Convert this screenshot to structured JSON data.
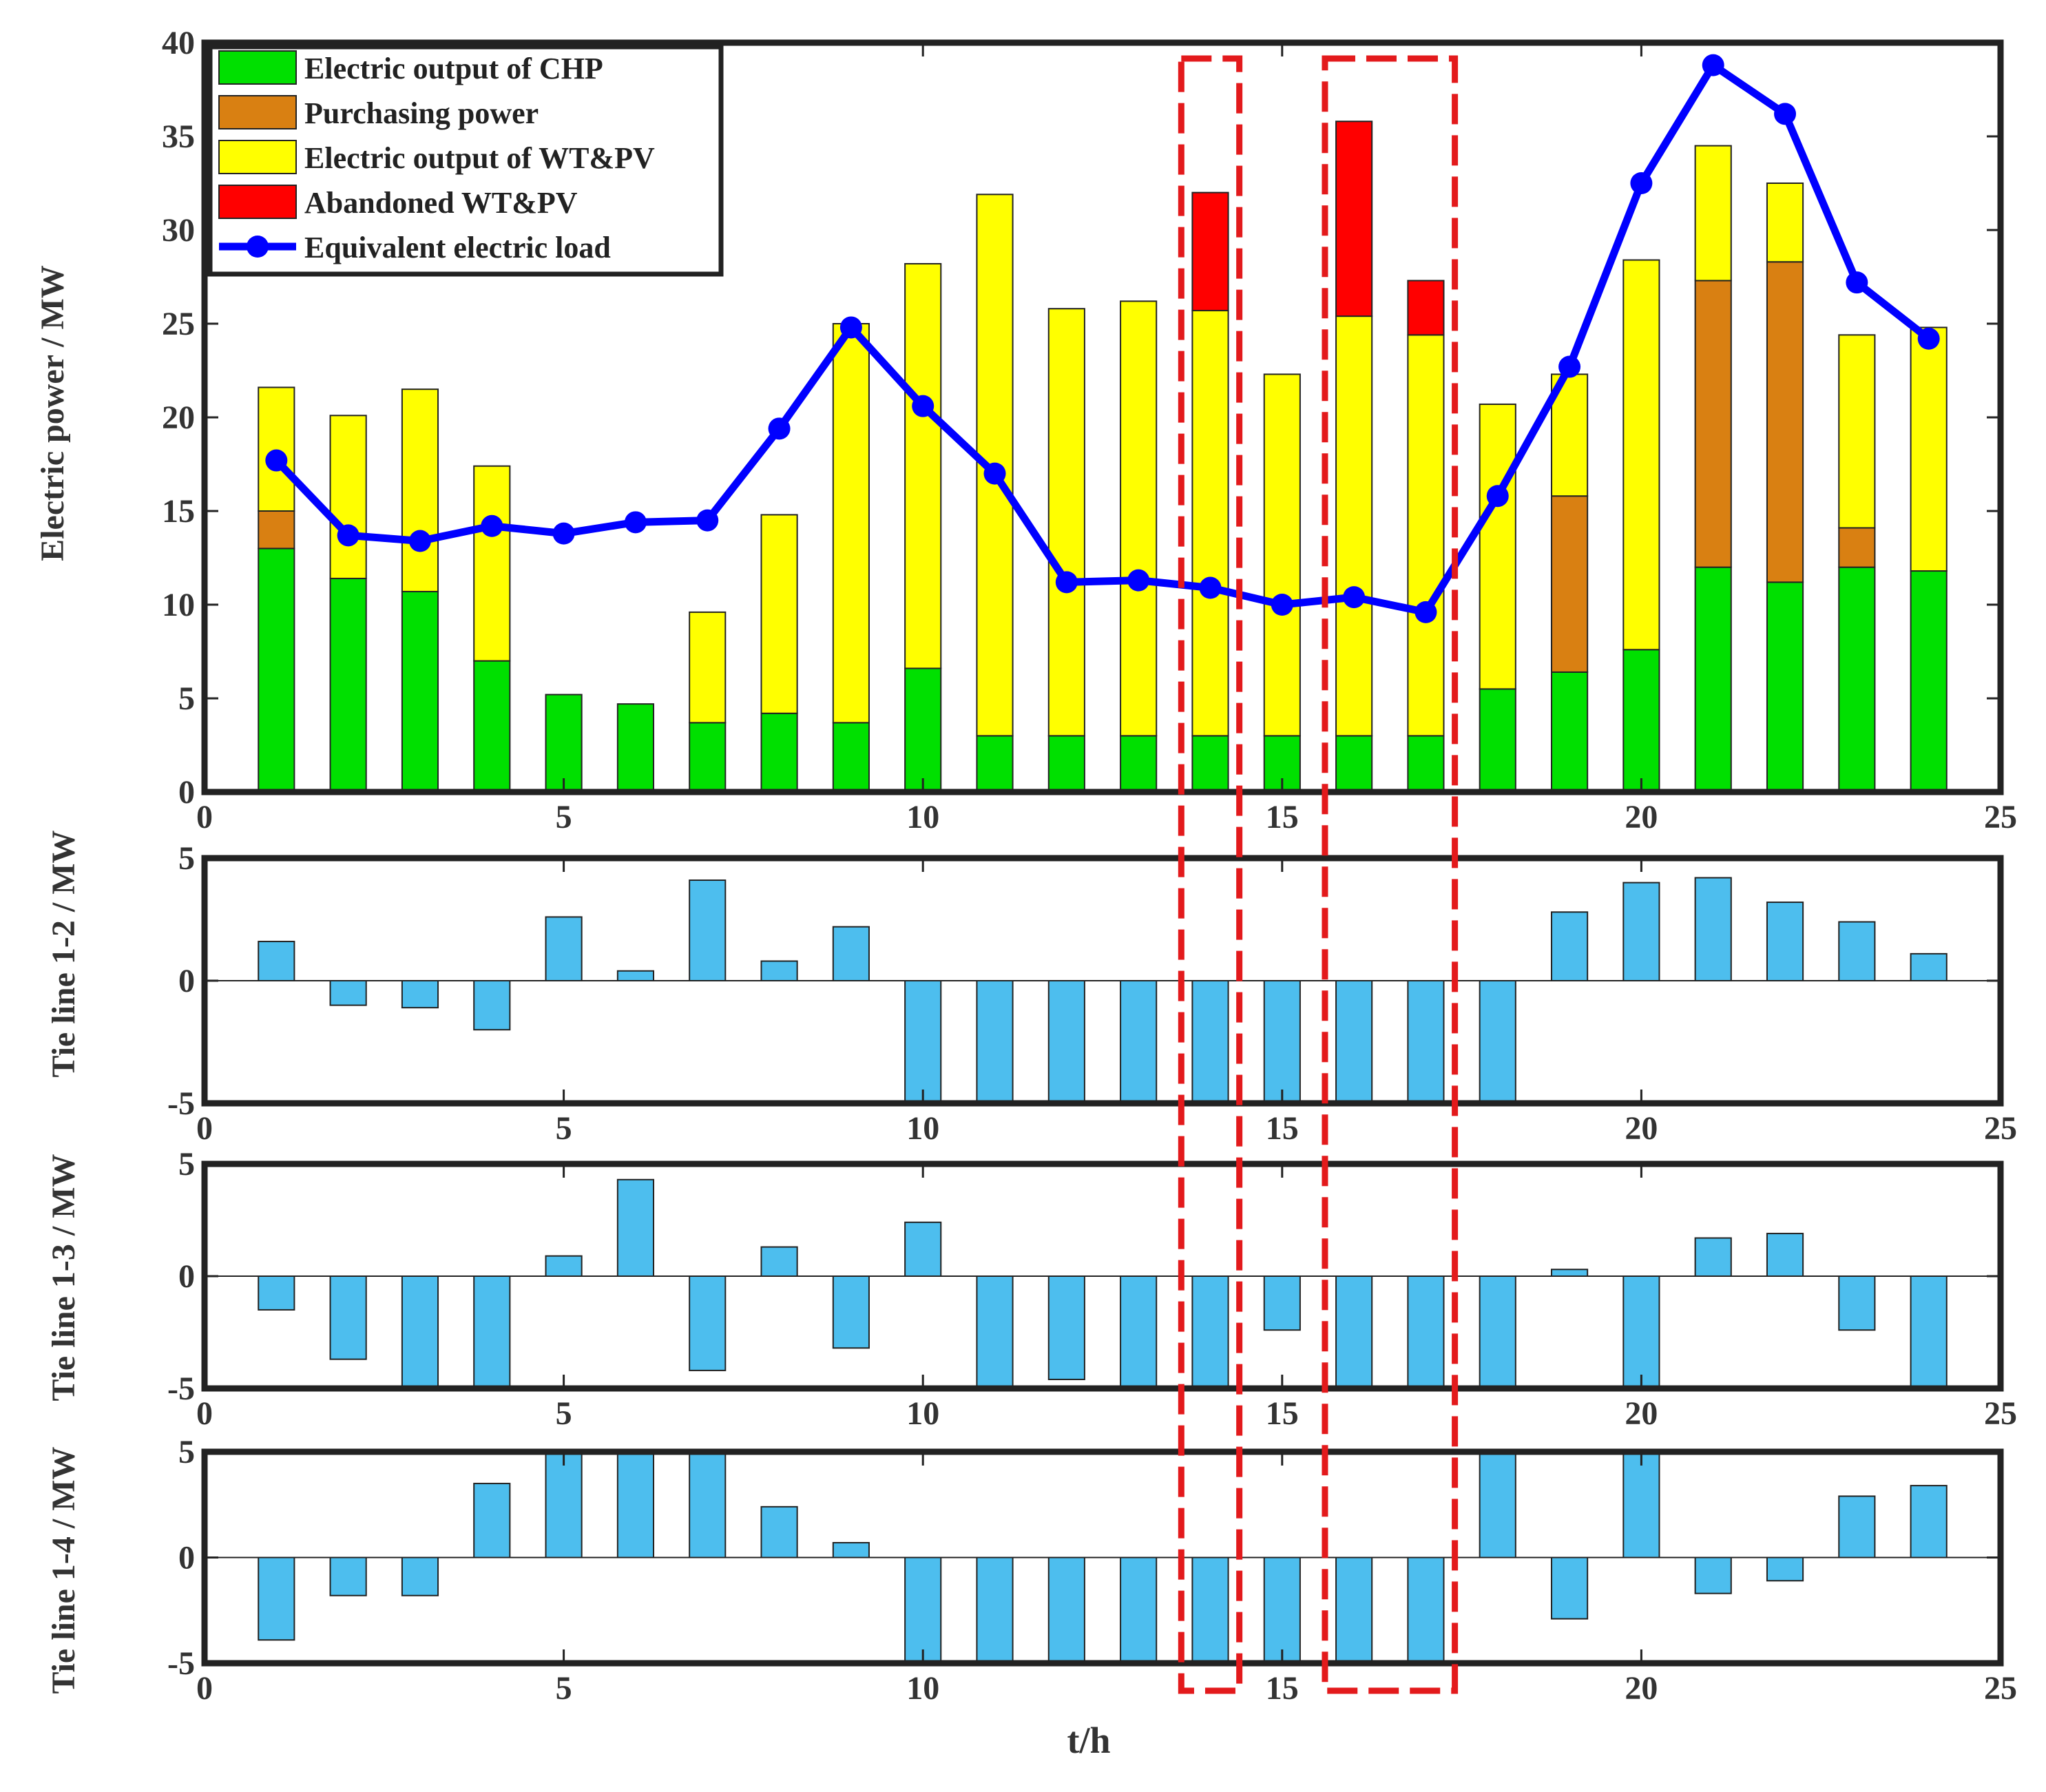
{
  "chart_data": [
    {
      "type": "bar",
      "stacked": true,
      "x": [
        1,
        2,
        3,
        4,
        5,
        6,
        7,
        8,
        9,
        10,
        11,
        12,
        13,
        14,
        15,
        16,
        17,
        18,
        19,
        20,
        21,
        22,
        23,
        24
      ],
      "xlim": [
        0,
        25
      ],
      "xticks": [
        0,
        5,
        10,
        15,
        20,
        25
      ],
      "ylim": [
        0,
        40
      ],
      "yticks": [
        0,
        5,
        10,
        15,
        20,
        25,
        30,
        35,
        40
      ],
      "ylabel": "Electric power / MW",
      "xlabel": "",
      "series": [
        {
          "name": "Electric output of CHP",
          "color": "#00e000",
          "values": [
            13,
            11.4,
            10.7,
            7,
            5.2,
            4.7,
            3.7,
            4.2,
            3.7,
            6.6,
            3,
            3,
            3,
            3,
            3,
            3,
            3,
            5.5,
            6.4,
            7.6,
            12,
            11.2,
            12,
            11.8
          ]
        },
        {
          "name": "Purchasing power",
          "color": "#d98012",
          "values": [
            2,
            0,
            0,
            0,
            0,
            0,
            0,
            0,
            0,
            0,
            0,
            0,
            0,
            0,
            0,
            0,
            0,
            0,
            9.4,
            0,
            15.3,
            17.1,
            2.1,
            0
          ]
        },
        {
          "name": "Electric output of WT&PV",
          "color": "#ffff00",
          "values": [
            6.6,
            8.7,
            10.8,
            10.4,
            0,
            0,
            5.9,
            10.6,
            21.3,
            21.6,
            28.9,
            22.8,
            23.2,
            22.7,
            19.3,
            22.4,
            21.4,
            15.2,
            6.5,
            20.8,
            7.2,
            4.2,
            10.3,
            13
          ]
        },
        {
          "name": "Abandoned WT&PV",
          "color": "#ff0000",
          "values": [
            0,
            0,
            0,
            0,
            0,
            0,
            0,
            0,
            0,
            0,
            0,
            0,
            0,
            6.3,
            0,
            10.4,
            2.9,
            0,
            0,
            0,
            0,
            0,
            0,
            0
          ]
        }
      ],
      "line": {
        "name": "Equivalent electric load",
        "color": "#0000ff",
        "values": [
          17.7,
          13.7,
          13.4,
          14.2,
          13.8,
          14.4,
          14.5,
          19.4,
          24.8,
          20.6,
          17,
          11.2,
          11.3,
          10.9,
          10,
          10.4,
          9.6,
          15.8,
          22.7,
          32.5,
          38.8,
          36.2,
          27.2,
          24.2
        ]
      },
      "legend": "top-left"
    },
    {
      "type": "bar",
      "x": [
        1,
        2,
        3,
        4,
        5,
        6,
        7,
        8,
        9,
        10,
        11,
        12,
        13,
        14,
        15,
        16,
        17,
        18,
        19,
        20,
        21,
        22,
        23,
        24
      ],
      "xlim": [
        0,
        25
      ],
      "xticks": [
        0,
        5,
        10,
        15,
        20,
        25
      ],
      "ylim": [
        -5,
        5
      ],
      "yticks": [
        -5,
        0,
        5
      ],
      "ylabel": "Tie line 1-2 / MW",
      "color": "#4dbeee",
      "values": [
        1.6,
        -1,
        -1.1,
        -2,
        2.6,
        0.4,
        4.1,
        0.8,
        2.2,
        -5,
        -5,
        -5,
        -5,
        -5,
        -5,
        -5,
        -5,
        -5,
        2.8,
        4,
        4.2,
        3.2,
        2.4,
        1.1
      ]
    },
    {
      "type": "bar",
      "x": [
        1,
        2,
        3,
        4,
        5,
        6,
        7,
        8,
        9,
        10,
        11,
        12,
        13,
        14,
        15,
        16,
        17,
        18,
        19,
        20,
        21,
        22,
        23,
        24
      ],
      "xlim": [
        0,
        25
      ],
      "xticks": [
        0,
        5,
        10,
        15,
        20,
        25
      ],
      "ylim": [
        -5,
        5
      ],
      "yticks": [
        -5,
        0,
        5
      ],
      "ylabel": "Tie line 1-3 / MW",
      "color": "#4dbeee",
      "values": [
        -1.5,
        -3.7,
        -5,
        -4.9,
        0.9,
        4.3,
        -4.2,
        1.3,
        -3.2,
        2.4,
        -5,
        -4.6,
        -5,
        -5,
        -2.4,
        -5,
        -5,
        -5,
        0.3,
        -5,
        1.7,
        1.9,
        -2.4,
        -5
      ]
    },
    {
      "type": "bar",
      "x": [
        1,
        2,
        3,
        4,
        5,
        6,
        7,
        8,
        9,
        10,
        11,
        12,
        13,
        14,
        15,
        16,
        17,
        18,
        19,
        20,
        21,
        22,
        23,
        24
      ],
      "xlim": [
        0,
        25
      ],
      "xticks": [
        0,
        5,
        10,
        15,
        20,
        25
      ],
      "ylim": [
        -5,
        5
      ],
      "yticks": [
        -5,
        0,
        5
      ],
      "ylabel": "Tie line 1-4 / MW",
      "xlabel": "t/h",
      "color": "#4dbeee",
      "values": [
        -3.9,
        -1.8,
        -1.8,
        3.5,
        5,
        5,
        5,
        2.4,
        0.7,
        -5,
        -5,
        -5,
        -5,
        -5,
        -5,
        -5,
        -5,
        5,
        -2.9,
        5,
        -1.7,
        -1.1,
        2.9,
        3.4
      ]
    }
  ],
  "highlights": [
    {
      "x_from": 13.5,
      "x_to": 14.5,
      "color": "#e31a1c",
      "style": "dashed"
    },
    {
      "x_from": 15.5,
      "x_to": 17.5,
      "color": "#e31a1c",
      "style": "dashed"
    }
  ]
}
